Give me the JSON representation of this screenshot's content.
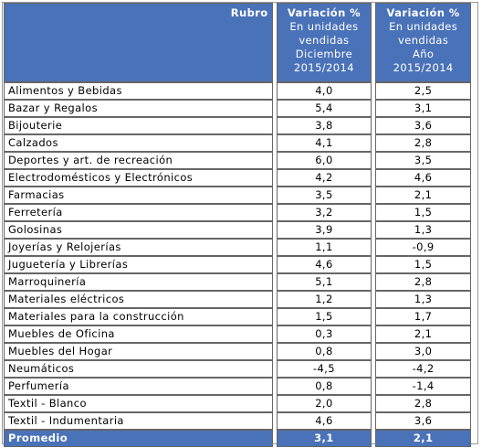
{
  "header": {
    "rubro": "Rubro",
    "columns": [
      {
        "title": "Variación %",
        "lines": [
          "En unidades",
          "vendidas",
          "Diciembre",
          "2015/2014"
        ]
      },
      {
        "title": "Variación %",
        "lines": [
          "En unidades",
          "vendidas",
          "Año",
          "2015/2014"
        ]
      }
    ]
  },
  "rows": [
    [
      "Alimentos y Bebidas",
      "4,0",
      "2,5"
    ],
    [
      "Bazar y Regalos",
      "5,4",
      "3,1"
    ],
    [
      "Bijouterie",
      "3,8",
      "3,6"
    ],
    [
      "Calzados",
      "4,1",
      "2,8"
    ],
    [
      "Deportes y art. de recreación",
      "6,0",
      "3,5"
    ],
    [
      "Electrodomésticos y Electrónicos",
      "4,2",
      "4,6"
    ],
    [
      "Farmacias",
      "3,5",
      "2,1"
    ],
    [
      "Ferretería",
      "3,2",
      "1,5"
    ],
    [
      "Golosinas",
      "3,9",
      "1,3"
    ],
    [
      "Joyerías y Relojerías",
      "1,1",
      "-0,9"
    ],
    [
      "Juguetería y Librerías",
      "4,6",
      "1,5"
    ],
    [
      "Marroquinería",
      "5,1",
      "2,8"
    ],
    [
      "Materiales eléctricos",
      "1,2",
      "1,3"
    ],
    [
      "Materiales para la construcción",
      "1,5",
      "1,7"
    ],
    [
      "Muebles de Oficina",
      "0,3",
      "2,1"
    ],
    [
      "Muebles del Hogar",
      "0,8",
      "3,0"
    ],
    [
      "Neumáticos",
      "-4,5",
      "-4,2"
    ],
    [
      "Perfumería",
      "0,8",
      "-1,4"
    ],
    [
      "Textil - Blanco",
      "2,0",
      "2,8"
    ],
    [
      "Textil - Indumentaria",
      "4,6",
      "3,6"
    ]
  ],
  "footer": [
    "Promedio",
    "3,1",
    "2,1"
  ]
}
